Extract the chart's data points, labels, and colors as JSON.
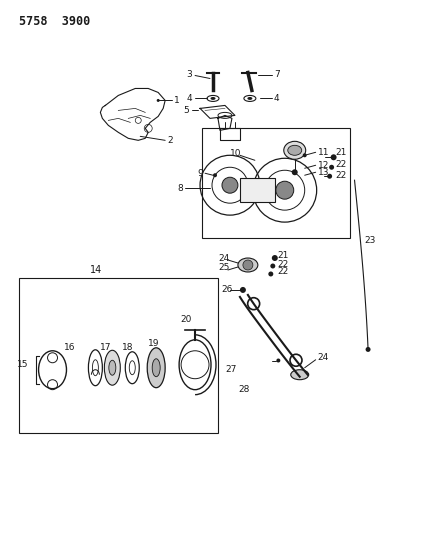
{
  "title": "5758  3900",
  "bg_color": "#ffffff",
  "line_color": "#1a1a1a",
  "text_color": "#1a1a1a",
  "title_fontsize": 8.5,
  "label_fontsize": 6.5,
  "fig_width": 4.28,
  "fig_height": 5.33,
  "dpi": 100
}
